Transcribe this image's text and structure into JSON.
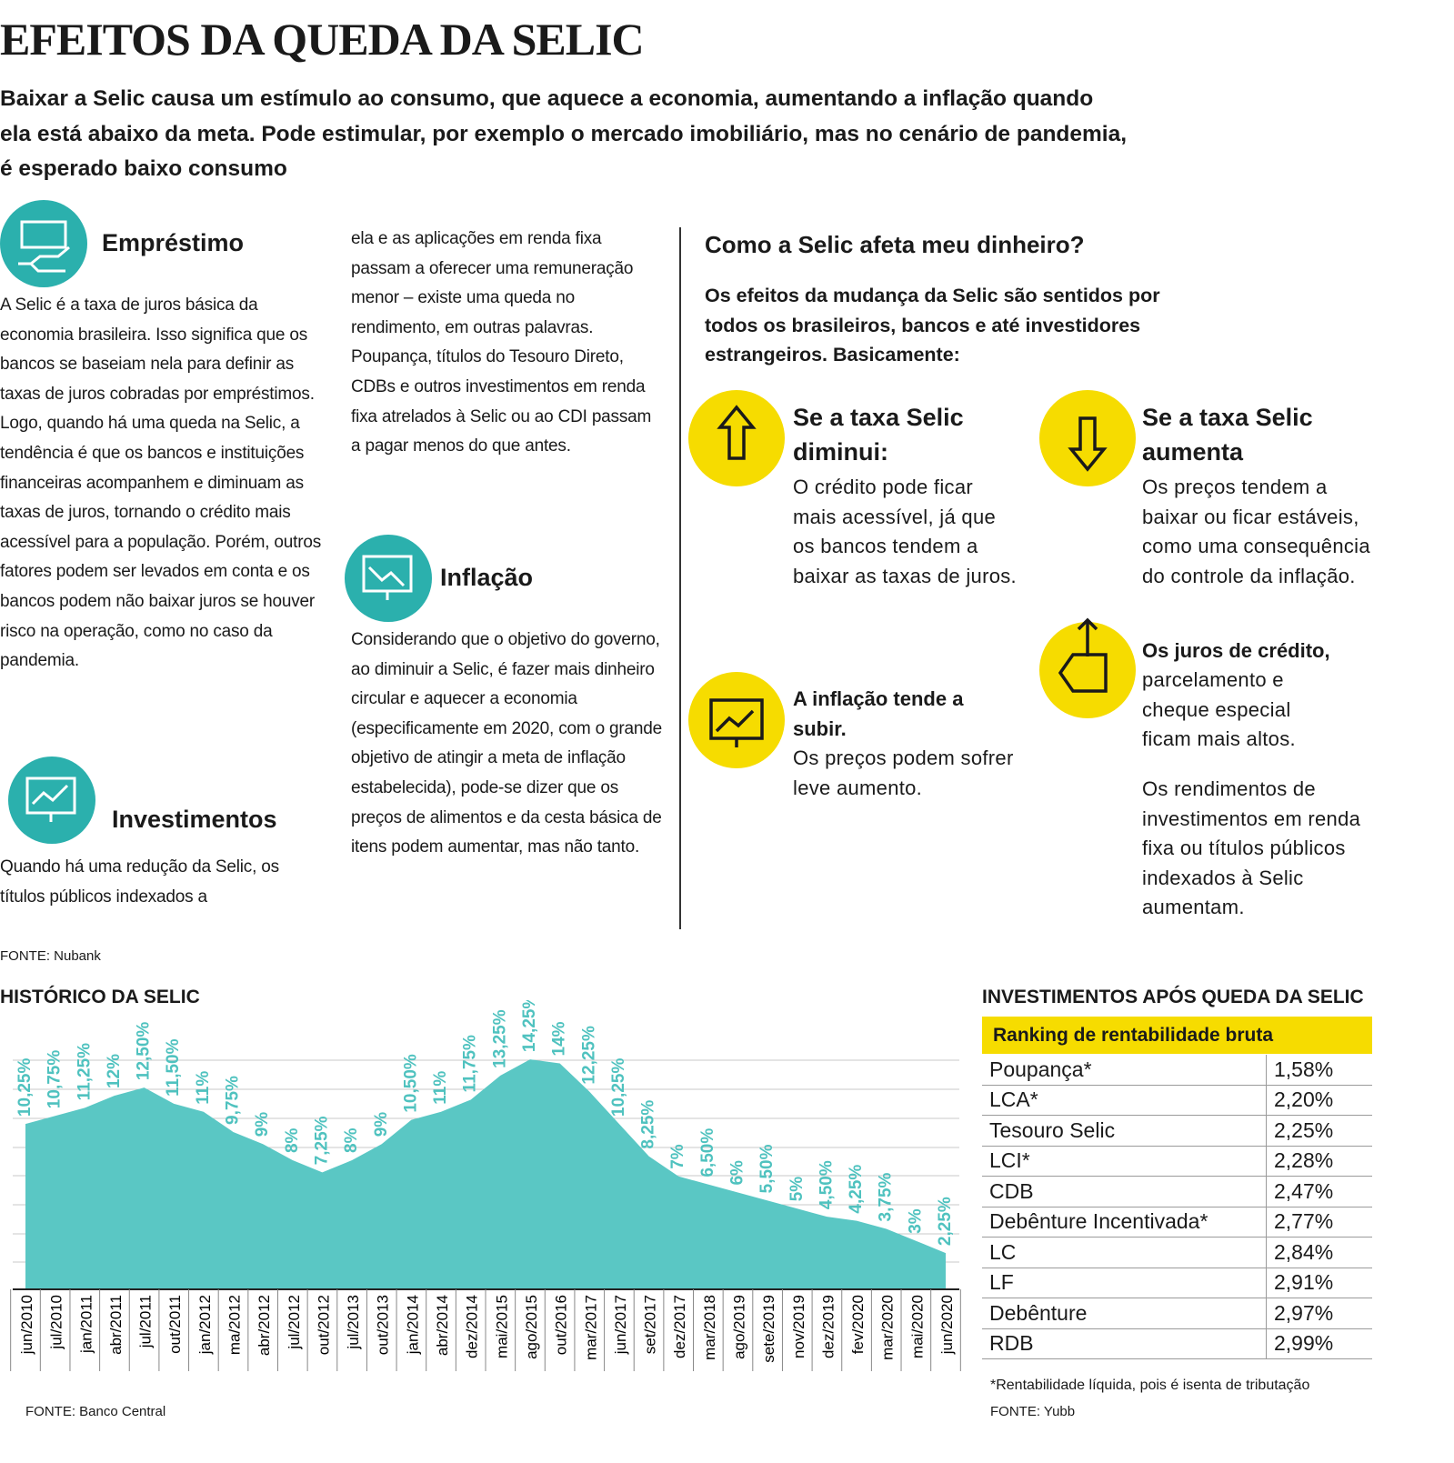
{
  "header": {
    "title": "EFEITOS DA QUEDA DA SELIC",
    "subtitle": "Baixar a Selic causa um estímulo ao consumo, que aquece a economia, aumentando a inflação quando ela está abaixo da meta. Pode estimular, por exemplo o mercado imobiliário, mas no cenário de pandemia, é esperado baixo consumo"
  },
  "loan": {
    "title": "Empréstimo",
    "text": "A Selic é a taxa de juros básica da economia brasileira. Isso significa que os bancos se baseiam nela para definir as taxas de juros cobradas por empréstimos. Logo, quando há uma queda na Selic, a tendência é que os bancos e instituições financeiras acompanhem e diminuam as taxas de juros, tornando o crédito mais acessível para a população. Porém, outros fatores podem ser levados em conta e os bancos podem não baixar juros se houver risco na operação, como no caso da pandemia."
  },
  "investments": {
    "title": "Investimentos",
    "text": [
      "Quando há uma redução da Selic, os títulos públicos indexados a",
      "ela e as aplicações em renda fixa passam a oferecer uma remuneração menor – existe uma queda no rendimento, em outras palavras. Poupança, títulos do Tesouro Direto, CDBs e outros investimentos em renda fixa atrelados à Selic ou ao CDI passam a pagar menos do que antes."
    ]
  },
  "inflation": {
    "title": "Inflação",
    "text": "Considerando que o objetivo do governo, ao diminuir a Selic, é fazer mais dinheiro circular e aquecer a economia (especificamente em 2020, com o grande objetivo de atingir a meta de inflação estabelecida), pode-se dizer que os preços de alimentos e da cesta básica de itens podem aumentar, mas não tanto."
  },
  "impact": {
    "title": "Como a Selic afeta meu dinheiro?",
    "intro": "Os efeitos da mudança da Selic são sentidos por todos os brasileiros, bancos e até investidores estrangeiros. Basicamente:",
    "decrease": {
      "title": "Se a taxa Selic diminui:",
      "text": "O crédito pode ficar mais acessível, já que os bancos tendem a baixar as taxas de juros."
    },
    "increase": {
      "title": "Se a taxa Selic aumenta",
      "text": "Os preços tendem a baixar ou ficar estáveis, como uma consequência do controle da inflação."
    },
    "inflation_rises": {
      "title": "A inflação tende a subir.",
      "text": "Os preços podem sofrer leve aumento."
    },
    "credit": {
      "title": "Os juros de crédito,",
      "text": "parcelamento e cheque especial ficam mais altos."
    },
    "yields": "Os rendimentos de investimentos em renda fixa ou títulos públicos indexados à Selic aumentam."
  },
  "sources": [
    "FONTE: Nubank",
    "FONTE: Banco Central",
    "FONTE: Yubb"
  ],
  "chart_data": {
    "type": "area",
    "title": "HISTÓRICO DA SELIC",
    "categories": [
      "jun/2010",
      "jul/2010",
      "jan/2011",
      "abr/2011",
      "jul/2011",
      "out/2011",
      "jan/2012",
      "ma/2012",
      "abr/2012",
      "jul/2012",
      "out/2012",
      "jul/2013",
      "out/2013",
      "jan/2014",
      "abr/2014",
      "dez/2014",
      "mai/2015",
      "ago/2015",
      "out/2016",
      "mar/2017",
      "jun/2017",
      "set/2017",
      "dez/2017",
      "mar/2018",
      "ago/2019",
      "sete/2019",
      "nov/2019",
      "dez/2019",
      "fev/2020",
      "mar/2020",
      "mai/2020",
      "jun/2020"
    ],
    "values": [
      10.25,
      10.75,
      11.25,
      12,
      12.5,
      11.5,
      11,
      9.75,
      9,
      8,
      7.25,
      8,
      9,
      10.5,
      11,
      11.75,
      13.25,
      14.25,
      14,
      12.25,
      10.25,
      8.25,
      7,
      6.5,
      6,
      5.5,
      5,
      4.5,
      4.25,
      3.75,
      3,
      2.25
    ],
    "value_labels": [
      "10,25%",
      "10,75%",
      "11,25%",
      "12%",
      "12,50%",
      "11,50%",
      "11%",
      "9,75%",
      "9%",
      "8%",
      "7,25%",
      "8%",
      "9%",
      "10,50%",
      "11%",
      "11,75%",
      "13,25%",
      "14,25%",
      "14%",
      "12,25%",
      "10,25%",
      "8,25%",
      "7%",
      "6,50%",
      "6%",
      "5,50%",
      "5%",
      "4,50%",
      "4,25%",
      "3,75%",
      "3%",
      "2,25%"
    ],
    "color": "#5ac7c4",
    "label_color": "#4fc2bf",
    "ylim": [
      0,
      16
    ]
  },
  "table": {
    "title": "INVESTIMENTOS APÓS QUEDA DA SELIC",
    "header": "Ranking de rentabilidade bruta",
    "rows": [
      [
        "Poupança*",
        "1,58%"
      ],
      [
        "LCA*",
        "2,20%"
      ],
      [
        "Tesouro Selic",
        "2,25%"
      ],
      [
        "LCI*",
        "2,28%"
      ],
      [
        "CDB",
        "2,47%"
      ],
      [
        "Debênture Incentivada*",
        "2,77%"
      ],
      [
        "LC",
        "2,84%"
      ],
      [
        "LF",
        "2,91%"
      ],
      [
        "Debênture",
        "2,97%"
      ],
      [
        "RDB",
        "2,99%"
      ]
    ],
    "footnote": "*Rentabilidade líquida, pois é isenta de tributação"
  }
}
